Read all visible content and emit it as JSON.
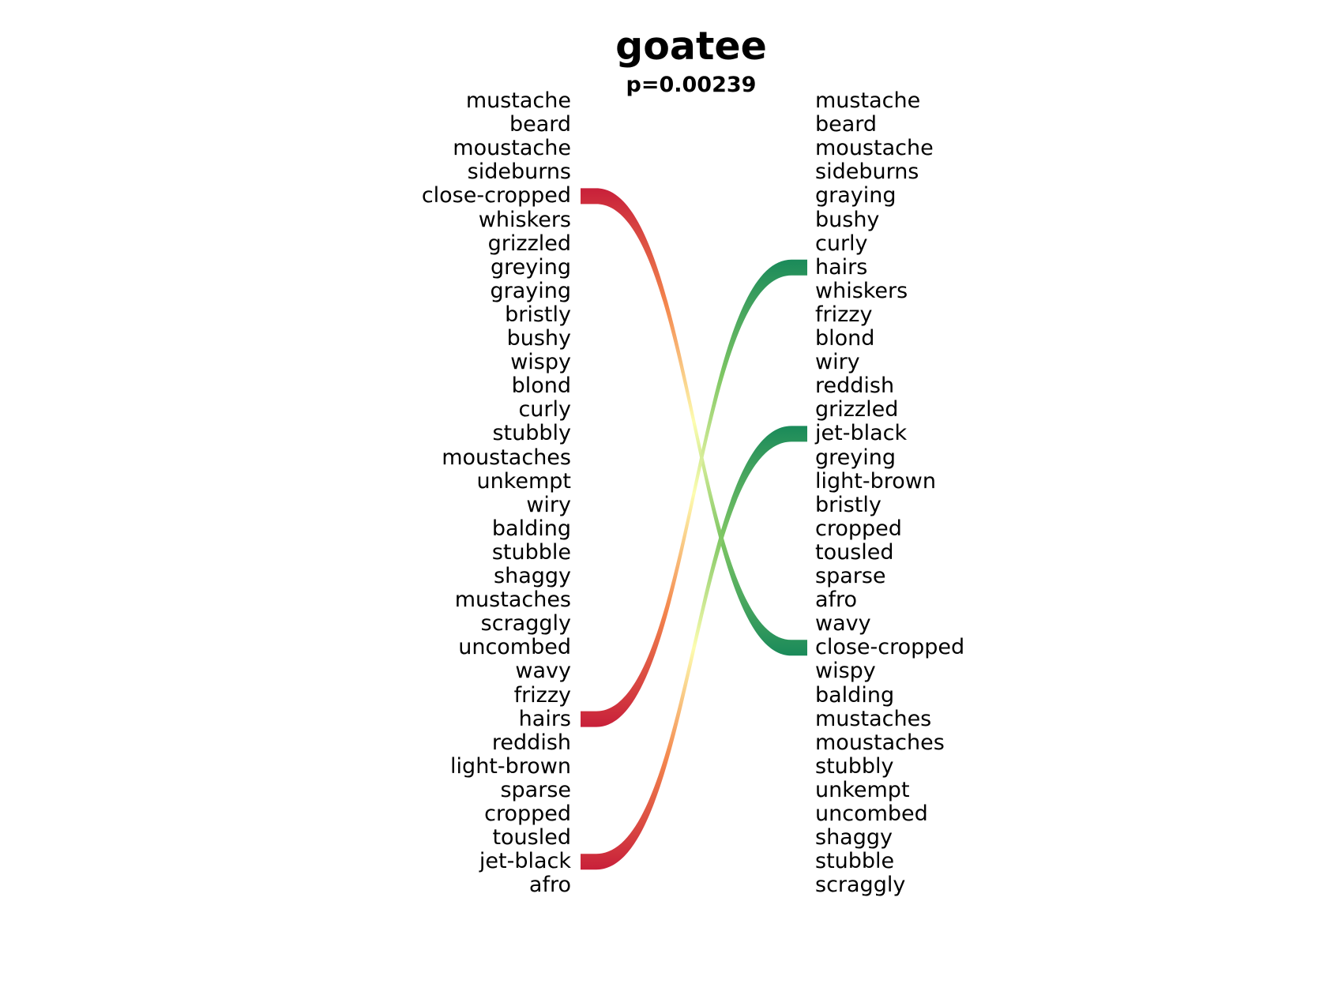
{
  "title": "goatee",
  "subtitle": "p=0.00239",
  "left_words": [
    "mustache",
    "beard",
    "moustache",
    "sideburns",
    "close-cropped",
    "whiskers",
    "grizzled",
    "greying",
    "graying",
    "bristly",
    "bushy",
    "wispy",
    "blond",
    "curly",
    "stubbly",
    "moustaches",
    "unkempt",
    "wiry",
    "balding",
    "stubble",
    "shaggy",
    "mustaches",
    "scraggly",
    "uncombed",
    "wavy",
    "frizzy",
    "hairs",
    "reddish",
    "light-brown",
    "sparse",
    "cropped",
    "tousled",
    "jet-black",
    "afro"
  ],
  "right_words": [
    "mustache",
    "beard",
    "moustache",
    "sideburns",
    "graying",
    "bushy",
    "curly",
    "hairs",
    "whiskers",
    "frizzy",
    "blond",
    "wiry",
    "reddish",
    "grizzled",
    "jet-black",
    "greying",
    "light-brown",
    "bristly",
    "cropped",
    "tousled",
    "sparse",
    "afro",
    "wavy",
    "close-cropped",
    "wispy",
    "balding",
    "mustaches",
    "moustaches",
    "stubbly",
    "unkempt",
    "uncombed",
    "shaggy",
    "stubble",
    "scraggly"
  ],
  "links": [
    {
      "from": "close-cropped",
      "to": "close-cropped",
      "from_rank": 5,
      "to_rank": 24
    },
    {
      "from": "hairs",
      "to": "hairs",
      "from_rank": 27,
      "to_rank": 8
    },
    {
      "from": "jet-black",
      "to": "jet-black",
      "from_rank": 33,
      "to_rank": 15
    }
  ],
  "colors": {
    "low": "#c8203a",
    "mid_low": "#f4874d",
    "mid": "#fdfdb0",
    "mid_high": "#7fc764",
    "high": "#1a8a5a"
  }
}
